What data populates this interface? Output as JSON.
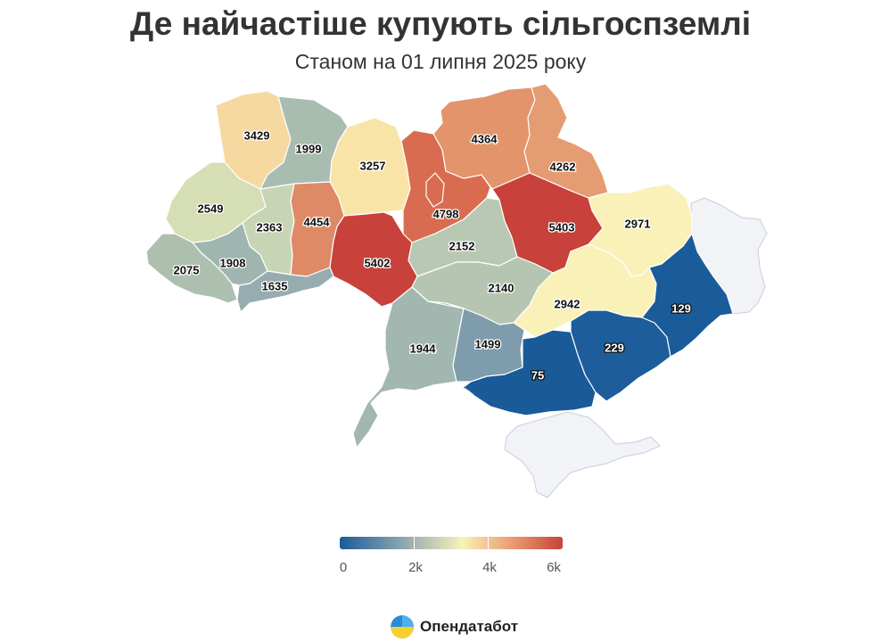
{
  "header": {
    "title": "Де найчастіше купують сільгоспземлі",
    "subtitle": "Станом на 01 липня 2025 року"
  },
  "chart_data": {
    "type": "choropleth",
    "value_range": [
      0,
      6000
    ],
    "regions": [
      {
        "name": "volyn",
        "value": 3429,
        "color": "#f6d9a0"
      },
      {
        "name": "rivne",
        "value": 1999,
        "color": "#a8bcb0"
      },
      {
        "name": "zhytomyr",
        "value": 3257,
        "color": "#f9e4a8"
      },
      {
        "name": "kyiv",
        "value": 4798,
        "color": "#d96c50"
      },
      {
        "name": "chernihiv",
        "value": 4364,
        "color": "#e3946b"
      },
      {
        "name": "sumy",
        "value": 4262,
        "color": "#e59c72"
      },
      {
        "name": "lviv",
        "value": 2549,
        "color": "#d5deb4"
      },
      {
        "name": "ternopil",
        "value": 2363,
        "color": "#c8d5b4"
      },
      {
        "name": "khmelnytskyi",
        "value": 4454,
        "color": "#df8a66"
      },
      {
        "name": "vinnytsia",
        "value": 5402,
        "color": "#c8413a"
      },
      {
        "name": "cherkasy",
        "value": 2152,
        "color": "#b9c8b2"
      },
      {
        "name": "poltava",
        "value": 5403,
        "color": "#c8413a"
      },
      {
        "name": "kharkiv",
        "value": 2971,
        "color": "#f9f1b8"
      },
      {
        "name": "zakarpattia",
        "value": 2075,
        "color": "#adc0b0"
      },
      {
        "name": "ivano-frankivsk",
        "value": 1908,
        "color": "#9fb5b0"
      },
      {
        "name": "chernivtsi",
        "value": 1635,
        "color": "#96acaf"
      },
      {
        "name": "kirovohrad",
        "value": 2140,
        "color": "#b5c5b1"
      },
      {
        "name": "dnipropetrovsk",
        "value": 2942,
        "color": "#f9f1b8"
      },
      {
        "name": "odesa",
        "value": 1944,
        "color": "#a2b7b0"
      },
      {
        "name": "mykolaiv",
        "value": 1499,
        "color": "#7e9cac"
      },
      {
        "name": "kherson",
        "value": 75,
        "color": "#195a99"
      },
      {
        "name": "zaporizhzhia",
        "value": 229,
        "color": "#1d5d9b"
      },
      {
        "name": "donetsk",
        "value": 129,
        "color": "#1a5b9a"
      }
    ],
    "legend": {
      "ticks": [
        "0",
        "2k",
        "4k",
        "6k"
      ]
    }
  },
  "brand": {
    "name": "Опендатабот"
  }
}
